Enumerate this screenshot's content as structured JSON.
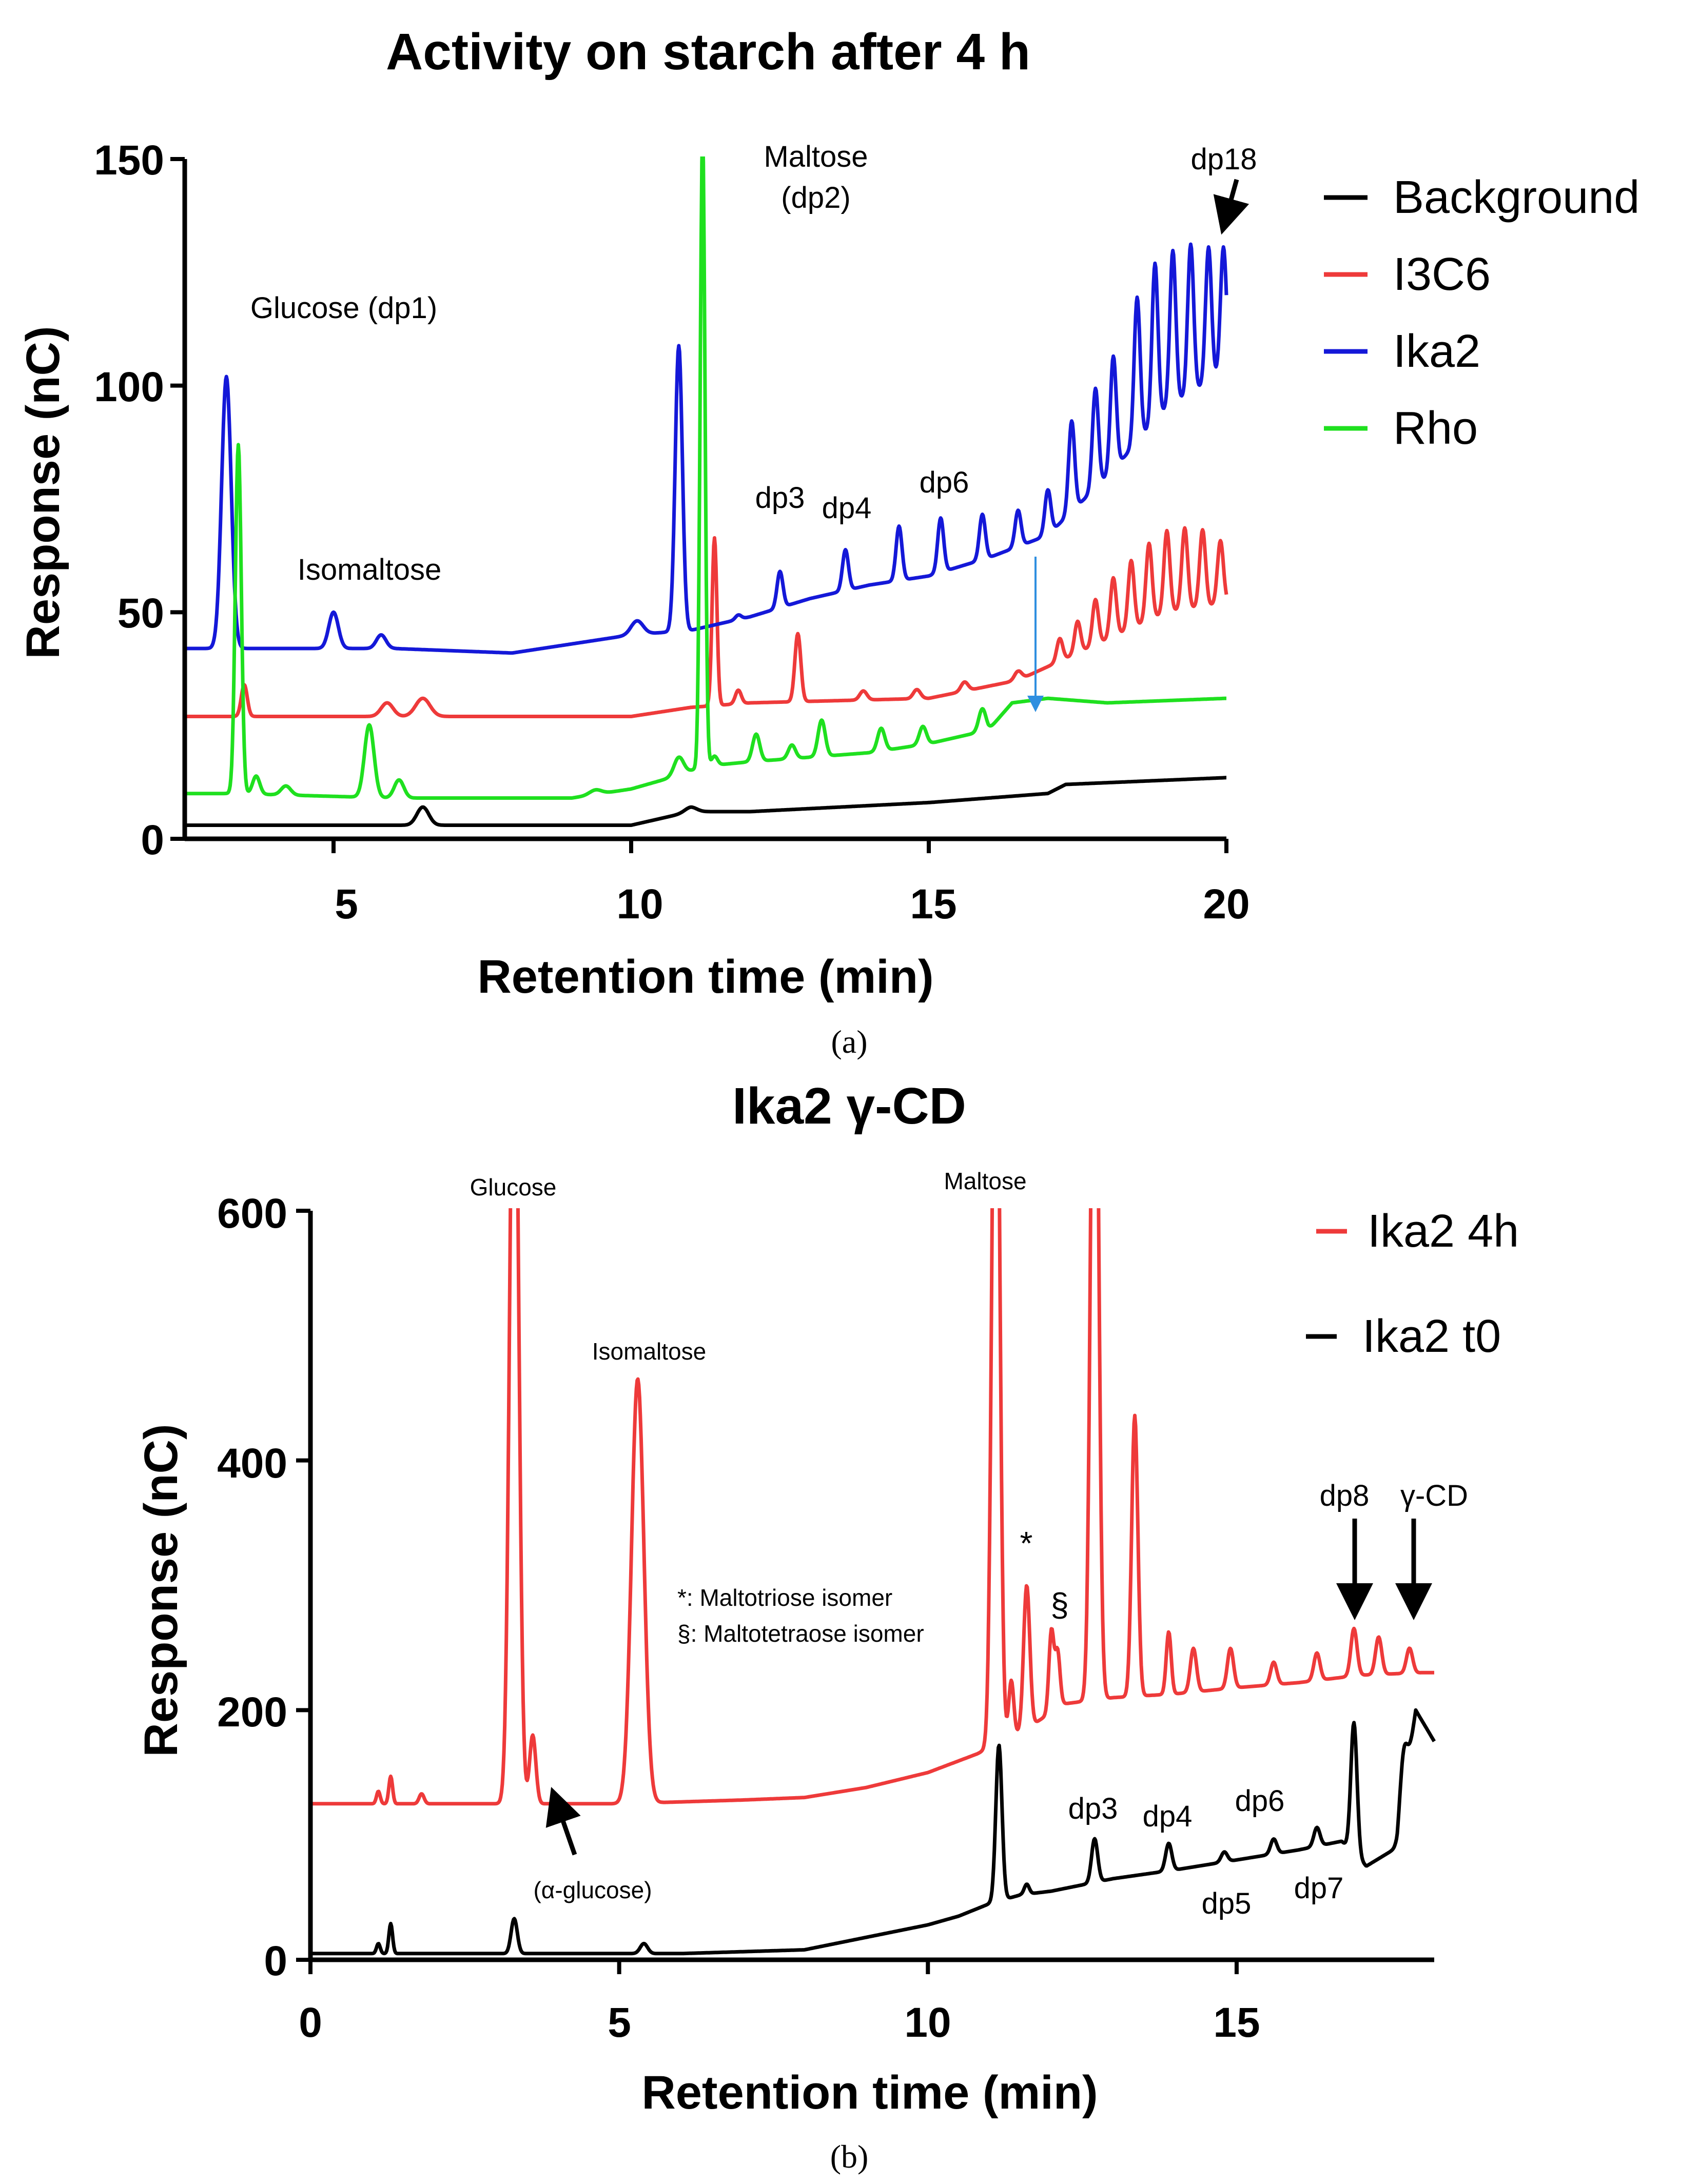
{
  "chart_data": [
    {
      "type": "line",
      "title": "Activity on starch after 4 h",
      "xlabel": "Retention time (min)",
      "ylabel": "Response  (nC)",
      "xlim": [
        2.5,
        20
      ],
      "ylim": [
        0,
        150
      ],
      "xticks": [
        5,
        10,
        15,
        20
      ],
      "yticks": [
        0,
        50,
        100,
        150
      ],
      "caption": "(a)",
      "legend_position": "right",
      "legend": [
        "Background",
        "I3C6",
        "Ika2",
        "Rho"
      ],
      "series": [
        {
          "name": "Background",
          "color": "#000000",
          "baseline": [
            [
              2.5,
              3
            ],
            [
              6,
              3
            ],
            [
              9,
              3
            ],
            [
              10,
              3
            ],
            [
              11,
              6
            ],
            [
              12,
              6
            ],
            [
              15,
              8
            ],
            [
              17,
              10
            ],
            [
              17.3,
              12
            ],
            [
              20,
              13.5
            ]
          ],
          "peaks": [
            [
              6.5,
              4,
              0.1
            ],
            [
              11.0,
              1,
              0.1
            ]
          ]
        },
        {
          "name": "I3C6",
          "color": "#ee3a3a",
          "baseline": [
            [
              2.5,
              27
            ],
            [
              6,
              27
            ],
            [
              10,
              27
            ],
            [
              11,
              29
            ],
            [
              12,
              30
            ],
            [
              15,
              31
            ],
            [
              16.5,
              35
            ],
            [
              17,
              38
            ],
            [
              18,
              44
            ],
            [
              19,
              50
            ],
            [
              20,
              52
            ]
          ],
          "peaks": [
            [
              3.5,
              7,
              0.05
            ],
            [
              5.9,
              3,
              0.1
            ],
            [
              6.5,
              4,
              0.12
            ],
            [
              11.4,
              37,
              0.04
            ],
            [
              11.8,
              3,
              0.05
            ],
            [
              12.8,
              15,
              0.05
            ],
            [
              13.9,
              2,
              0.06
            ],
            [
              14.8,
              2,
              0.06
            ],
            [
              15.6,
              2,
              0.06
            ],
            [
              16.5,
              2,
              0.06
            ],
            [
              17.2,
              5,
              0.05
            ],
            [
              17.5,
              7,
              0.05
            ],
            [
              17.8,
              10,
              0.05
            ],
            [
              18.1,
              13,
              0.05
            ],
            [
              18.4,
              15,
              0.05
            ],
            [
              18.7,
              17,
              0.05
            ],
            [
              19.0,
              18,
              0.05
            ],
            [
              19.3,
              18,
              0.05
            ],
            [
              19.6,
              17,
              0.05
            ],
            [
              19.9,
              14,
              0.05
            ]
          ]
        },
        {
          "name": "Ika2",
          "color": "#1418d8",
          "baseline": [
            [
              2.5,
              42
            ],
            [
              6,
              42
            ],
            [
              8,
              41
            ],
            [
              10,
              45
            ],
            [
              11,
              46
            ],
            [
              12,
              49
            ],
            [
              13,
              53
            ],
            [
              14,
              56
            ],
            [
              15,
              58
            ],
            [
              16,
              62
            ],
            [
              17,
              67
            ],
            [
              18,
              80
            ],
            [
              19,
              95
            ],
            [
              20,
              103
            ]
          ],
          "peaks": [
            [
              3.2,
              60,
              0.08
            ],
            [
              5.0,
              8,
              0.08
            ],
            [
              5.8,
              3,
              0.08
            ],
            [
              10.1,
              3,
              0.1
            ],
            [
              10.8,
              63,
              0.06
            ],
            [
              11.8,
              1,
              0.05
            ],
            [
              12.5,
              8,
              0.05
            ],
            [
              13.6,
              9,
              0.05
            ],
            [
              14.5,
              12,
              0.05
            ],
            [
              15.2,
              12,
              0.05
            ],
            [
              15.9,
              10,
              0.05
            ],
            [
              16.5,
              8,
              0.05
            ],
            [
              17.0,
              10,
              0.05
            ],
            [
              17.4,
              20,
              0.05
            ],
            [
              17.8,
              22,
              0.05
            ],
            [
              18.1,
              25,
              0.05
            ],
            [
              18.5,
              32,
              0.05
            ],
            [
              18.8,
              35,
              0.05
            ],
            [
              19.1,
              34,
              0.05
            ],
            [
              19.4,
              33,
              0.05
            ],
            [
              19.7,
              30,
              0.05
            ],
            [
              19.95,
              28,
              0.05
            ]
          ]
        },
        {
          "name": "Rho",
          "color": "#1fe01f",
          "baseline": [
            [
              2.5,
              10
            ],
            [
              3.3,
              10
            ],
            [
              6,
              9
            ],
            [
              9,
              9
            ],
            [
              10,
              11
            ],
            [
              10.8,
              14
            ],
            [
              11.2,
              16
            ],
            [
              12,
              17
            ],
            [
              13,
              18
            ],
            [
              14,
              19
            ],
            [
              15,
              21
            ],
            [
              16,
              24
            ],
            [
              16.4,
              30
            ],
            [
              17,
              31
            ],
            [
              18,
              30
            ],
            [
              20,
              31
            ]
          ],
          "peaks": [
            [
              3.4,
              77,
              0.05
            ],
            [
              3.7,
              4,
              0.06
            ],
            [
              4.2,
              2,
              0.08
            ],
            [
              5.6,
              16,
              0.08
            ],
            [
              6.1,
              4,
              0.08
            ],
            [
              9.4,
              1,
              0.1
            ],
            [
              10.8,
              4,
              0.08
            ],
            [
              11.2,
              140,
              0.04
            ],
            [
              11.4,
              2,
              0.05
            ],
            [
              12.1,
              6,
              0.06
            ],
            [
              12.7,
              3,
              0.06
            ],
            [
              13.2,
              8,
              0.06
            ],
            [
              14.2,
              5,
              0.06
            ],
            [
              14.9,
              4,
              0.06
            ],
            [
              15.9,
              5,
              0.06
            ]
          ]
        }
      ],
      "annotations": [
        {
          "text": "Glucose (dp1)",
          "x": 4.3,
          "y": 118
        },
        {
          "text": "Isomaltose",
          "x": 6.0,
          "y": 58
        },
        {
          "text": "Maltose",
          "x": 12.2,
          "y": 146
        },
        {
          "text": "(dp2)",
          "x": 12.2,
          "y": 139
        },
        {
          "text": "dp3",
          "x": 12.4,
          "y": 65
        },
        {
          "text": "dp4",
          "x": 13.5,
          "y": 72
        },
        {
          "text": "dp6",
          "x": 15.2,
          "y": 76
        },
        {
          "text": "dp18",
          "x": 20.0,
          "y": 145
        }
      ]
    },
    {
      "type": "line",
      "title": "Ika2 γ-CD",
      "xlabel": "Retention time (min)",
      "ylabel": "Response  (nC)",
      "xlim": [
        0,
        18.2
      ],
      "ylim": [
        0,
        600
      ],
      "xticks": [
        0,
        5,
        10,
        15
      ],
      "yticks": [
        0,
        200,
        400,
        600
      ],
      "caption": "(b)",
      "legend_position": "top-right",
      "legend": [
        "Ika2 4h",
        "Ika2 t0"
      ],
      "series": [
        {
          "name": "Ika2 4h",
          "color": "#ee3a3a",
          "baseline": [
            [
              0,
              125
            ],
            [
              3,
              125
            ],
            [
              5,
              125
            ],
            [
              7,
              128
            ],
            [
              8,
              130
            ],
            [
              9,
              138
            ],
            [
              10,
              150
            ],
            [
              10.8,
              165
            ],
            [
              11.6,
              185
            ],
            [
              12.2,
              205
            ],
            [
              13,
              210
            ],
            [
              14,
              213
            ],
            [
              15,
              218
            ],
            [
              16,
              222
            ],
            [
              17,
              228
            ],
            [
              18,
              230
            ]
          ],
          "peaks": [
            [
              1.1,
              10,
              0.03
            ],
            [
              1.3,
              22,
              0.03
            ],
            [
              1.8,
              8,
              0.04
            ],
            [
              3.3,
              700,
              0.07
            ],
            [
              3.6,
              55,
              0.05
            ],
            [
              5.3,
              340,
              0.1
            ],
            [
              11.1,
              700,
              0.06
            ],
            [
              11.35,
              45,
              0.04
            ],
            [
              11.6,
              115,
              0.05
            ],
            [
              12.0,
              65,
              0.04
            ],
            [
              12.1,
              45,
              0.04
            ],
            [
              12.7,
              700,
              0.06
            ],
            [
              13.35,
              225,
              0.05
            ],
            [
              13.9,
              50,
              0.04
            ],
            [
              14.3,
              35,
              0.05
            ],
            [
              14.9,
              32,
              0.05
            ],
            [
              15.6,
              18,
              0.05
            ],
            [
              16.3,
              22,
              0.05
            ],
            [
              16.9,
              38,
              0.05
            ],
            [
              17.3,
              30,
              0.05
            ],
            [
              17.8,
              20,
              0.05
            ]
          ]
        },
        {
          "name": "Ika2 t0",
          "color": "#000000",
          "baseline": [
            [
              0,
              5
            ],
            [
              6,
              5
            ],
            [
              8,
              8
            ],
            [
              9,
              18
            ],
            [
              10,
              28
            ],
            [
              10.5,
              35
            ],
            [
              11,
              45
            ],
            [
              11.5,
              52
            ],
            [
              12,
              55
            ],
            [
              13,
              65
            ],
            [
              14,
              72
            ],
            [
              15,
              80
            ],
            [
              16,
              88
            ],
            [
              16.7,
              95
            ],
            [
              17.1,
              75
            ],
            [
              17.6,
              90
            ],
            [
              17.9,
              200
            ],
            [
              18.2,
              175
            ]
          ],
          "peaks": [
            [
              1.1,
              8,
              0.03
            ],
            [
              1.3,
              24,
              0.03
            ],
            [
              3.3,
              28,
              0.05
            ],
            [
              5.4,
              8,
              0.06
            ],
            [
              11.15,
              125,
              0.05
            ],
            [
              11.6,
              8,
              0.04
            ],
            [
              12.7,
              35,
              0.05
            ],
            [
              13.9,
              22,
              0.05
            ],
            [
              14.8,
              8,
              0.05
            ],
            [
              15.6,
              12,
              0.05
            ],
            [
              16.3,
              15,
              0.05
            ],
            [
              16.9,
              105,
              0.05
            ],
            [
              17.7,
              40,
              0.06
            ]
          ]
        }
      ],
      "annotations": [
        {
          "text": "Glucose",
          "x": 3.3,
          "y": 610
        },
        {
          "text": "Maltose",
          "x": 10.9,
          "y": 613
        },
        {
          "text": "Isomaltose",
          "x": 5.3,
          "y": 485
        },
        {
          "text": "*",
          "x": 11.6,
          "y": 330
        },
        {
          "text": "§",
          "x": 12.1,
          "y": 280
        },
        {
          "text": "dp3",
          "x": 12.7,
          "y": 118
        },
        {
          "text": "dp4",
          "x": 13.9,
          "y": 110
        },
        {
          "text": "dp6",
          "x": 15.6,
          "y": 122
        },
        {
          "text": "dp5",
          "x": 14.9,
          "y": 45
        },
        {
          "text": "dp7",
          "x": 16.3,
          "y": 58
        },
        {
          "text": "dp8",
          "x": 16.9,
          "y": 355
        },
        {
          "text": "γ-CD",
          "x": 17.8,
          "y": 355
        },
        {
          "text": "(α-glucose)",
          "x": 4.4,
          "y": 55
        }
      ],
      "notes": [
        "*: Maltotriose isomer",
        "§: Maltotetraose isomer"
      ]
    }
  ]
}
